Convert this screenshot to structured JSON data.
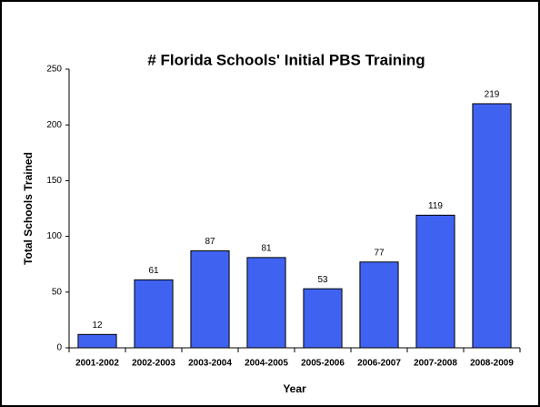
{
  "chart_data": {
    "type": "bar",
    "title": "# Florida Schools' Initial PBS Training",
    "x_label": "Year",
    "y_label": "Total Schools Trained",
    "categories": [
      "2001-2002",
      "2002-2003",
      "2003-2004",
      "2004-2005",
      "2005-2006",
      "2006-2007",
      "2007-2008",
      "2008-2009"
    ],
    "values": [
      12,
      61,
      87,
      81,
      53,
      77,
      119,
      219
    ],
    "color": "#3f63f0",
    "ylim": [
      0,
      250
    ],
    "yticks": [
      0,
      50,
      100,
      150,
      200,
      250
    ],
    "grid": false
  }
}
